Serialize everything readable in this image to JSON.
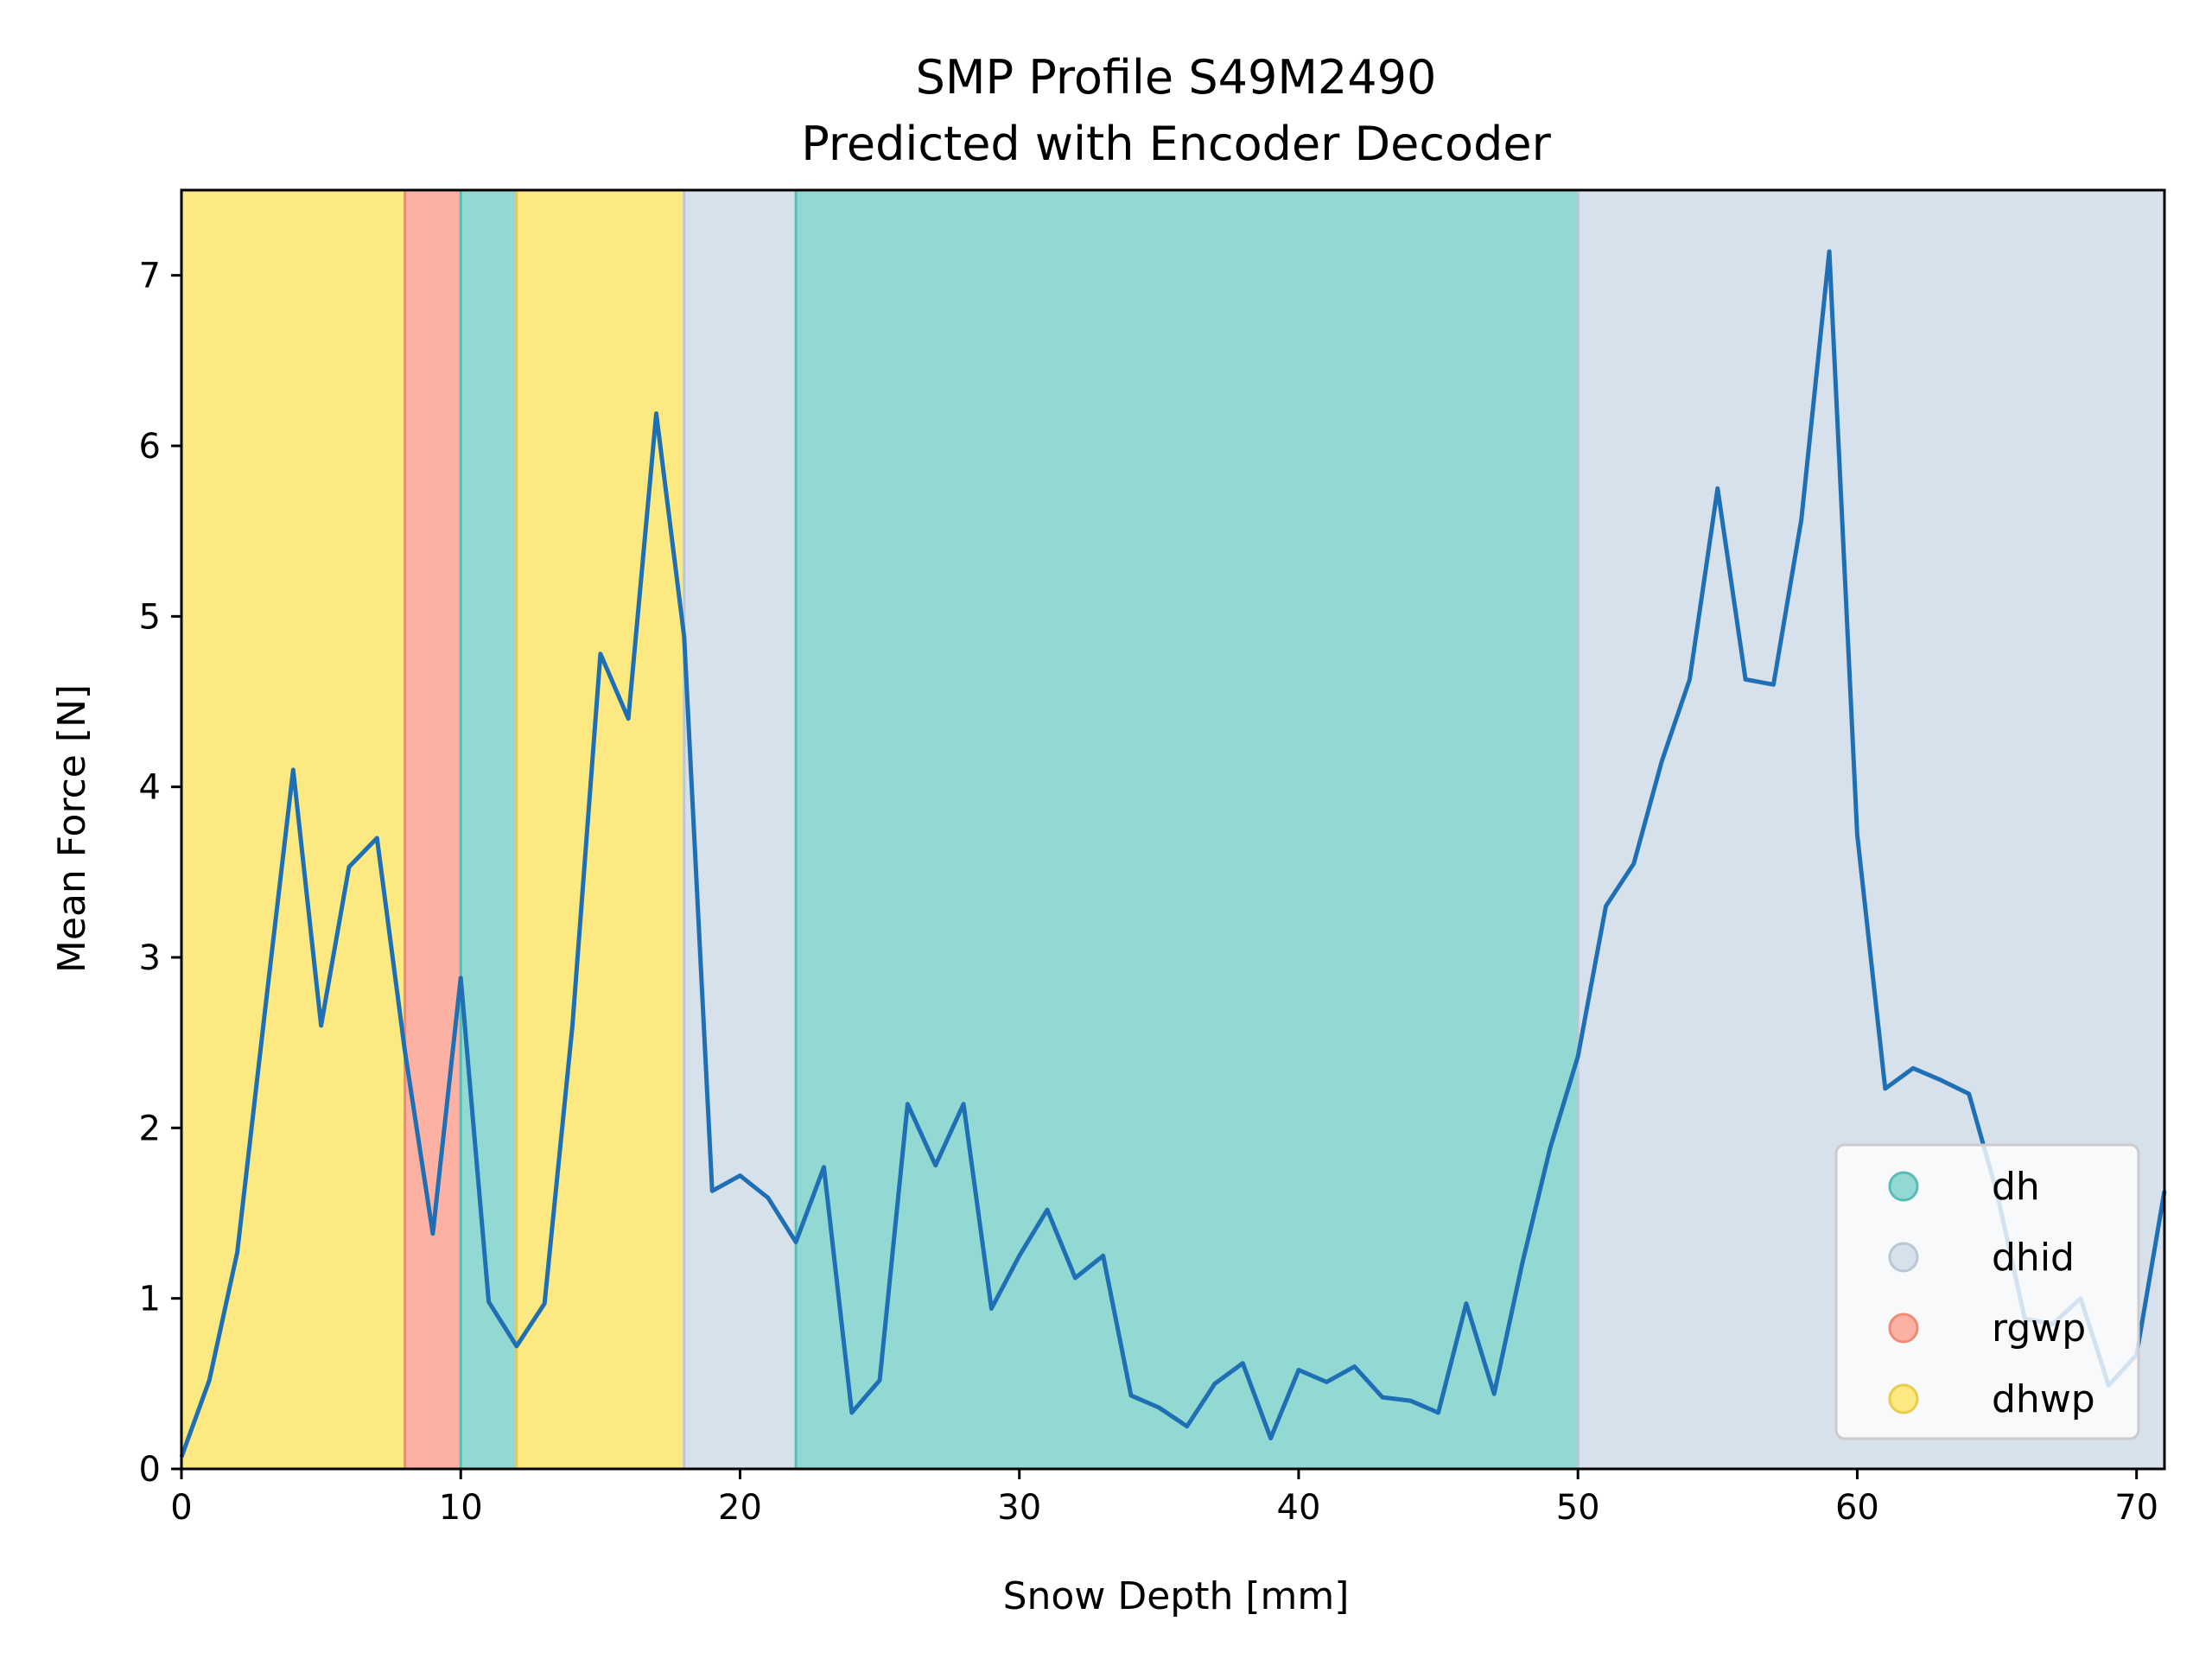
{
  "chart_data": {
    "type": "line",
    "title": "SMP Profile S49M2490",
    "subtitle": "Predicted with Encoder Decoder",
    "xlabel": "Snow Depth [mm]",
    "ylabel": "Mean Force [N]",
    "xlim": [
      0,
      71
    ],
    "ylim": [
      0,
      7.5
    ],
    "x_ticks": [
      0,
      10,
      20,
      30,
      40,
      50,
      60,
      70
    ],
    "y_ticks": [
      0,
      1,
      2,
      3,
      4,
      5,
      6,
      7
    ],
    "grid": false,
    "legend_position": "lower-right",
    "series": [
      {
        "color": "#1f6fb4",
        "x": [
          0,
          1,
          2,
          3,
          4,
          5,
          6,
          7,
          8,
          9,
          10,
          11,
          12,
          13,
          14,
          15,
          16,
          17,
          18,
          19,
          20,
          21,
          22,
          23,
          24,
          25,
          26,
          27,
          28,
          29,
          30,
          31,
          32,
          33,
          34,
          35,
          36,
          37,
          38,
          39,
          40,
          41,
          42,
          43,
          44,
          45,
          46,
          47,
          48,
          49,
          50,
          51,
          52,
          53,
          54,
          55,
          56,
          57,
          58,
          59,
          60,
          61,
          62,
          63,
          64,
          65,
          66,
          67,
          68,
          69,
          70,
          71
        ],
        "y": [
          0.07,
          0.52,
          1.27,
          2.7,
          4.1,
          2.6,
          3.53,
          3.7,
          2.45,
          1.38,
          2.88,
          0.98,
          0.72,
          0.97,
          2.6,
          4.78,
          4.4,
          6.19,
          4.88,
          1.63,
          1.72,
          1.59,
          1.33,
          1.77,
          0.33,
          0.52,
          2.14,
          1.78,
          2.14,
          0.94,
          1.25,
          1.52,
          1.12,
          1.25,
          0.43,
          0.36,
          0.25,
          0.5,
          0.62,
          0.18,
          0.58,
          0.51,
          0.6,
          0.42,
          0.4,
          0.33,
          0.97,
          0.44,
          1.2,
          1.88,
          2.42,
          3.3,
          3.55,
          4.15,
          4.63,
          5.75,
          4.63,
          4.6,
          5.57,
          7.14,
          3.72,
          2.23,
          2.35,
          2.28,
          2.2,
          1.62,
          0.88,
          0.85,
          1.0,
          0.49,
          0.67,
          1.63
        ]
      }
    ],
    "layers": [
      {
        "label": "dhwp",
        "x0": 0,
        "x1": 8
      },
      {
        "label": "rgwp",
        "x0": 8,
        "x1": 10
      },
      {
        "label": "dh",
        "x0": 10,
        "x1": 12
      },
      {
        "label": "dhwp",
        "x0": 12,
        "x1": 18
      },
      {
        "label": "dhid",
        "x0": 18,
        "x1": 22
      },
      {
        "label": "dh",
        "x0": 22,
        "x1": 50
      },
      {
        "label": "dhid",
        "x0": 50,
        "x1": 71
      }
    ],
    "legend": [
      {
        "label": "dh",
        "color": "#92d8d3"
      },
      {
        "label": "dhid",
        "color": "#d7e1ec"
      },
      {
        "label": "rgwp",
        "color": "#fcb1a3"
      },
      {
        "label": "dhwp",
        "color": "#fde982"
      }
    ],
    "layer_colors": {
      "dh": "#92d8d3",
      "dhid": "#d7e1ec",
      "rgwp": "#fcb1a3",
      "dhwp": "#fde982"
    },
    "layer_edge_colors": {
      "dh": "#5bbcb6",
      "dhid": "#b9c8d8",
      "rgwp": "#f08a78",
      "dhwp": "#e8cc4a"
    }
  }
}
